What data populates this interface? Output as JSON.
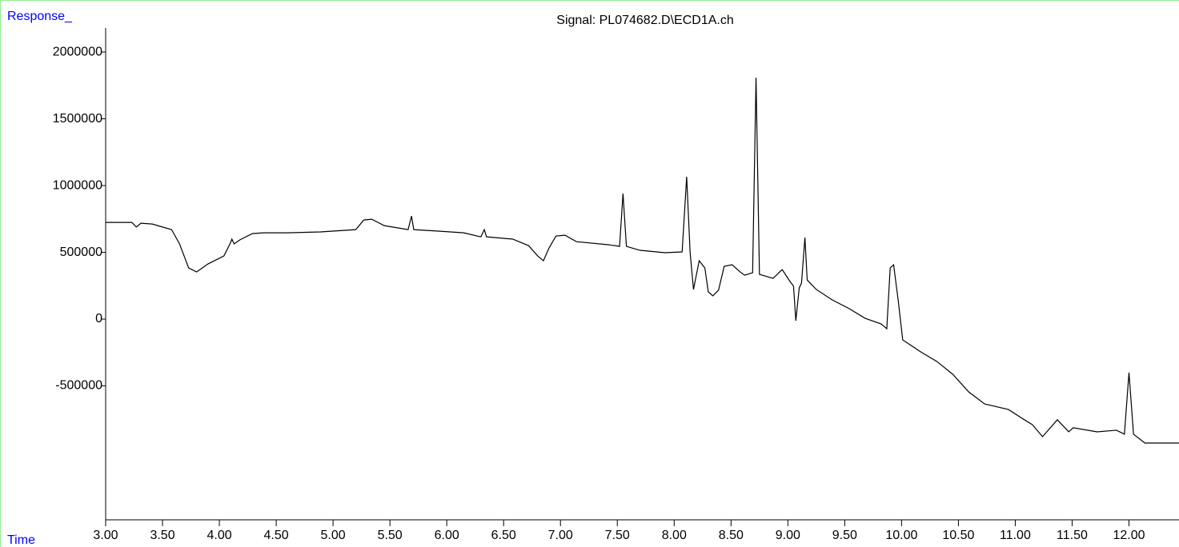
{
  "chart_data": {
    "type": "line",
    "title": "Signal: PL074682.D\\ECD1A.ch",
    "y_label": "Response_",
    "x_label": "Time",
    "color": "#000000",
    "x": [
      3.0,
      3.23,
      3.27,
      3.31,
      3.41,
      3.58,
      3.65,
      3.73,
      3.8,
      3.9,
      4.04,
      4.1,
      4.11,
      4.13,
      4.18,
      4.29,
      4.39,
      4.6,
      4.89,
      5.2,
      5.27,
      5.34,
      5.45,
      5.66,
      5.69,
      5.71,
      5.94,
      6.15,
      6.3,
      6.33,
      6.35,
      6.58,
      6.72,
      6.8,
      6.85,
      6.9,
      6.96,
      7.04,
      7.14,
      7.42,
      7.52,
      7.55,
      7.58,
      7.7,
      7.92,
      8.07,
      8.11,
      8.14,
      8.17,
      8.22,
      8.27,
      8.3,
      8.34,
      8.39,
      8.44,
      8.51,
      8.58,
      8.62,
      8.69,
      8.72,
      8.75,
      8.87,
      8.95,
      9.01,
      9.05,
      9.07,
      9.1,
      9.12,
      9.15,
      9.17,
      9.25,
      9.39,
      9.54,
      9.68,
      9.82,
      9.87,
      9.9,
      9.93,
      9.97,
      10.01,
      10.17,
      10.31,
      10.45,
      10.59,
      10.73,
      10.94,
      11.08,
      11.15,
      11.24,
      11.37,
      11.47,
      11.51,
      11.72,
      11.89,
      11.96,
      12.0,
      12.04,
      12.14,
      12.44
    ],
    "values": [
      724000,
      724000,
      690000,
      718000,
      712000,
      670000,
      563000,
      383000,
      353000,
      413000,
      473000,
      575000,
      599000,
      563000,
      593000,
      640000,
      646000,
      646000,
      653000,
      670000,
      742000,
      748000,
      700000,
      670000,
      772000,
      670000,
      658000,
      646000,
      616000,
      670000,
      616000,
      599000,
      550000,
      473000,
      437000,
      533000,
      622000,
      628000,
      580000,
      557000,
      545000,
      940000,
      545000,
      515000,
      497000,
      503000,
      1066000,
      503000,
      222000,
      437000,
      383000,
      204000,
      174000,
      216000,
      395000,
      407000,
      353000,
      329000,
      347000,
      1808000,
      335000,
      305000,
      371000,
      293000,
      246000,
      -12000,
      234000,
      270000,
      611000,
      293000,
      222000,
      144000,
      78000,
      6000,
      -36000,
      -72000,
      383000,
      407000,
      144000,
      -156000,
      -246000,
      -317000,
      -413000,
      -545000,
      -635000,
      -677000,
      -754000,
      -790000,
      -880000,
      -754000,
      -844000,
      -814000,
      -844000,
      -832000,
      -862000,
      -401000,
      -862000,
      -928000,
      -928000
    ],
    "xlim": [
      3.0,
      12.44
    ],
    "ylim": [
      -1503000,
      2180000
    ],
    "xticks": [
      {
        "value": 3,
        "label": "3.00"
      },
      {
        "value": 3.5,
        "label": "3.50"
      },
      {
        "value": 4,
        "label": "4.00"
      },
      {
        "value": 4.5,
        "label": "4.50"
      },
      {
        "value": 5,
        "label": "5.00"
      },
      {
        "value": 5.5,
        "label": "5.50"
      },
      {
        "value": 6,
        "label": "6.00"
      },
      {
        "value": 6.5,
        "label": "6.50"
      },
      {
        "value": 7,
        "label": "7.00"
      },
      {
        "value": 7.5,
        "label": "7.50"
      },
      {
        "value": 8,
        "label": "8.00"
      },
      {
        "value": 8.5,
        "label": "8.50"
      },
      {
        "value": 9,
        "label": "9.00"
      },
      {
        "value": 9.5,
        "label": "9.50"
      },
      {
        "value": 10,
        "label": "10.00"
      },
      {
        "value": 10.5,
        "label": "10.50"
      },
      {
        "value": 11,
        "label": "11.00"
      },
      {
        "value": 11.5,
        "label": "11.50"
      },
      {
        "value": 12,
        "label": "12.00"
      }
    ],
    "yticks": [
      -500000,
      0,
      500000,
      1000000,
      1500000,
      2000000
    ]
  }
}
